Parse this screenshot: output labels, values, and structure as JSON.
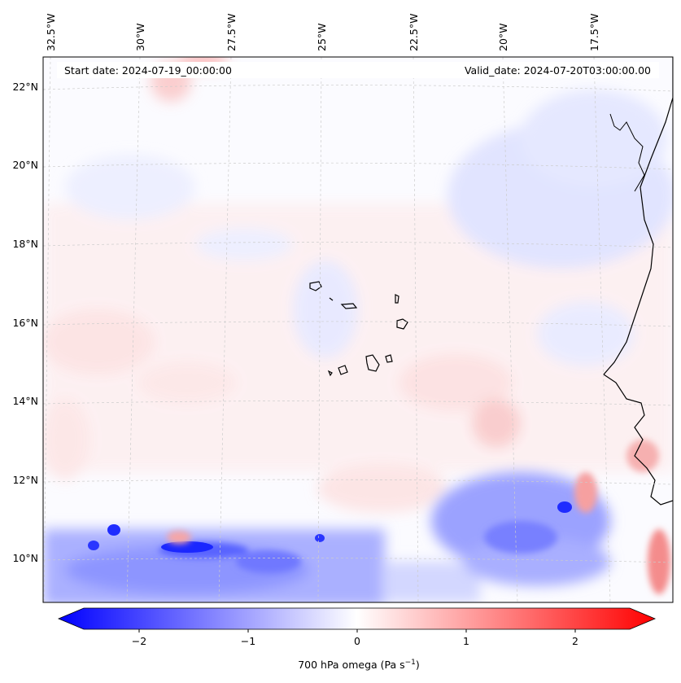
{
  "map": {
    "start_label": "Start date: 2024-07-19_00:00:00",
    "valid_label": "Valid_date: 2024-07-20T03:00:00.00",
    "lon_labels": [
      "32.5°W",
      "30°W",
      "27.5°W",
      "25°W",
      "22.5°W",
      "20°W",
      "17.5°W"
    ],
    "lat_labels": [
      "22°N",
      "20°N",
      "18°N",
      "16°N",
      "14°N",
      "12°N",
      "10°N"
    ],
    "field_name": "700 hPa omega",
    "colorscale": {
      "min": -2.5,
      "max": 2.5,
      "negative": "#0000ff",
      "zero": "#ffffff",
      "positive": "#ff0000"
    }
  },
  "colorbar": {
    "ticks": [
      "−2",
      "−1",
      "0",
      "1",
      "2"
    ],
    "label_text": "700 hPa omega (Pa s",
    "label_sup": "−1",
    "label_end": ")"
  }
}
